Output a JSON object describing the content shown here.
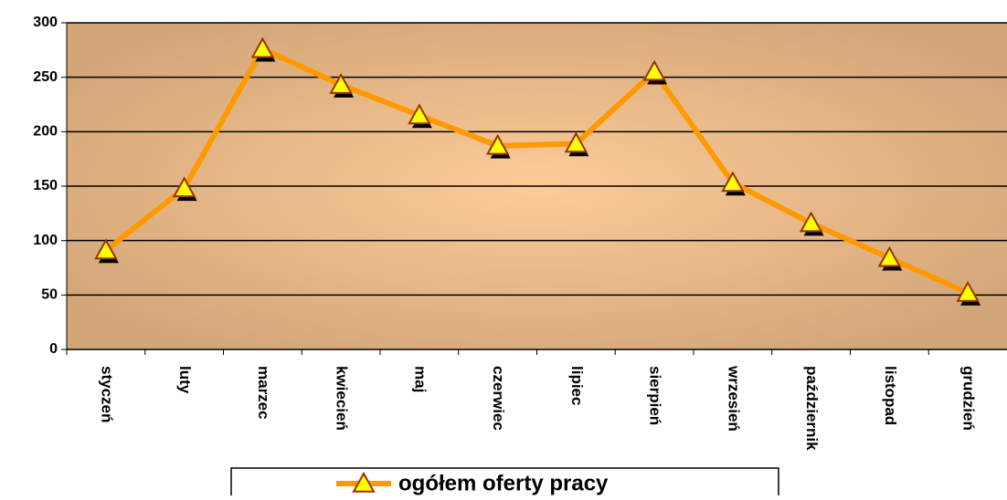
{
  "chart_data": {
    "type": "line",
    "categories": [
      "styczeń",
      "luty",
      "marzec",
      "kwiecień",
      "maj",
      "czerwiec",
      "lipiec",
      "sierpień",
      "wrzesień",
      "październik",
      "listopad",
      "grudzień"
    ],
    "series": [
      {
        "name": "ogółem oferty pracy",
        "color": "#ff9900",
        "marker_color": "#ffff00",
        "values": [
          91,
          148,
          276,
          243,
          215,
          187,
          189,
          255,
          153,
          116,
          84,
          52
        ]
      }
    ],
    "ylim": [
      0,
      300
    ],
    "yticks": [
      0,
      50,
      100,
      150,
      200,
      250,
      300
    ],
    "grid": true,
    "legend": "bottom"
  }
}
